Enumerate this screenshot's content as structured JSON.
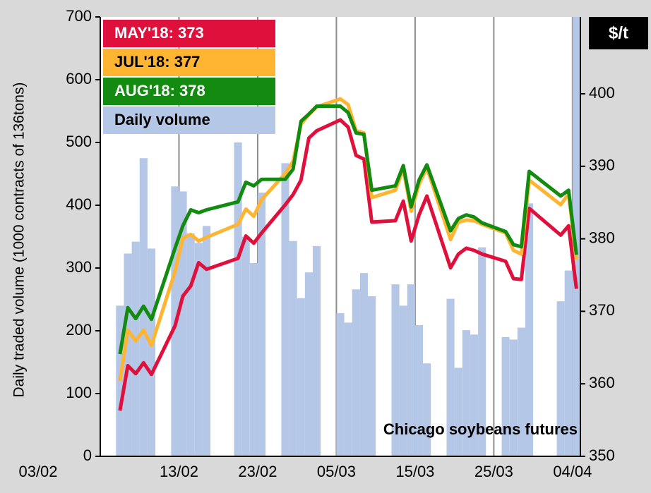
{
  "chart_data": {
    "type": "bar-line",
    "y_label": "Daily traded volume  (1000 contracts of 136tons)",
    "y2_label": "$/t",
    "annotation": "Chicago soybeans futures",
    "x": [
      "05/02",
      "06/02",
      "07/02",
      "08/02",
      "09/02",
      "12/02",
      "13/02",
      "14/02",
      "15/02",
      "16/02",
      "20/02",
      "21/02",
      "22/02",
      "23/02",
      "26/02",
      "27/02",
      "28/02",
      "01/03",
      "02/03",
      "05/03",
      "06/03",
      "07/03",
      "08/03",
      "09/03",
      "12/03",
      "13/03",
      "14/03",
      "15/03",
      "16/03",
      "19/03",
      "20/03",
      "21/03",
      "22/03",
      "23/03",
      "26/03",
      "27/03",
      "28/03",
      "29/03",
      "02/04",
      "03/04",
      "04/04"
    ],
    "xlim": [
      "03/02",
      "05/04"
    ],
    "xticks": [
      "03/02",
      "13/02",
      "23/02",
      "05/03",
      "15/03",
      "25/03",
      "04/04"
    ],
    "ylim": [
      0,
      700
    ],
    "yticks": [
      0,
      100,
      200,
      300,
      400,
      500,
      600,
      700
    ],
    "y2lim": [
      350,
      410.6
    ],
    "y2ticks": [
      350,
      360,
      370,
      380,
      390,
      400
    ],
    "grid": true,
    "series": [
      {
        "name": "Daily volume",
        "color": "#b4c7e7",
        "type": "bar",
        "axis": "y",
        "values": [
          240,
          323,
          342,
          475,
          331,
          430,
          422,
          355,
          340,
          367,
          500,
          350,
          308,
          420,
          467,
          343,
          252,
          293,
          335,
          228,
          213,
          266,
          292,
          255,
          274,
          240,
          274,
          209,
          148,
          251,
          141,
          201,
          194,
          333,
          190,
          186,
          205,
          403,
          247,
          296,
          705
        ]
      },
      {
        "name": "MAY'18:  373",
        "color": "#e0103c",
        "type": "line",
        "axis": "y2",
        "values": [
          356.3,
          362.5,
          361.4,
          362.9,
          361.3,
          368.0,
          372.1,
          373.5,
          376.7,
          375.8,
          377.3,
          380.4,
          379.4,
          380.8,
          384.7,
          386.1,
          388.1,
          393.9,
          394.9,
          396.4,
          395.4,
          391.5,
          391.0,
          382.3,
          382.5,
          385.2,
          379.7,
          383.3,
          385.9,
          376.0,
          377.9,
          378.7,
          378.4,
          377.9,
          376.9,
          374.5,
          374.4,
          384.2,
          380.5,
          381.8,
          373.1
        ]
      },
      {
        "name": "JUL'18: 377",
        "color": "#ffb531",
        "type": "line",
        "axis": "y2",
        "values": [
          360.4,
          367.4,
          365.9,
          367.4,
          365.3,
          375.5,
          380.1,
          380.6,
          379.7,
          380.2,
          382.0,
          384.1,
          383.1,
          385.4,
          389.0,
          390.7,
          395.8,
          397.1,
          398.2,
          399.3,
          398.5,
          394.9,
          394.6,
          385.7,
          386.7,
          389.6,
          383.8,
          387.5,
          389.8,
          379.9,
          382.3,
          382.6,
          382.5,
          382.0,
          380.8,
          378.4,
          377.9,
          388.1,
          384.7,
          386.2,
          377.1
        ]
      },
      {
        "name": "AUG'18:  378",
        "color": "#138a10",
        "type": "line",
        "axis": "y2",
        "values": [
          364.1,
          370.5,
          369.0,
          370.7,
          368.9,
          378.7,
          381.8,
          384.0,
          383.6,
          384.0,
          385.1,
          387.8,
          387.3,
          388.2,
          388.2,
          389.6,
          396.2,
          397.2,
          398.3,
          398.3,
          397.4,
          394.6,
          394.4,
          386.7,
          387.3,
          390.1,
          384.4,
          388.1,
          390.2,
          381.1,
          382.8,
          383.3,
          383.0,
          382.2,
          381.0,
          379.2,
          378.9,
          389.3,
          385.9,
          386.7,
          377.8
        ]
      }
    ]
  }
}
